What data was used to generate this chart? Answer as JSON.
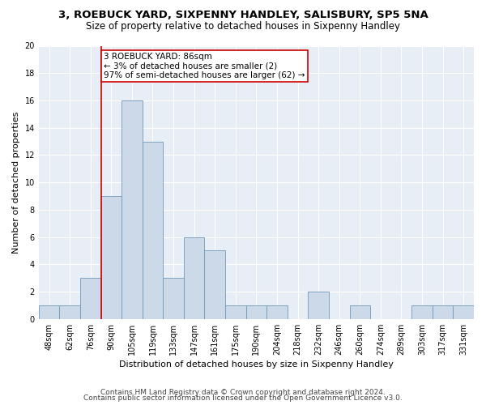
{
  "title1": "3, ROEBUCK YARD, SIXPENNY HANDLEY, SALISBURY, SP5 5NA",
  "title2": "Size of property relative to detached houses in Sixpenny Handley",
  "xlabel": "Distribution of detached houses by size in Sixpenny Handley",
  "ylabel": "Number of detached properties",
  "bin_labels": [
    "48sqm",
    "62sqm",
    "76sqm",
    "90sqm",
    "105sqm",
    "119sqm",
    "133sqm",
    "147sqm",
    "161sqm",
    "175sqm",
    "190sqm",
    "204sqm",
    "218sqm",
    "232sqm",
    "246sqm",
    "260sqm",
    "274sqm",
    "289sqm",
    "303sqm",
    "317sqm",
    "331sqm"
  ],
  "bin_values": [
    1,
    1,
    3,
    9,
    16,
    13,
    3,
    6,
    5,
    1,
    1,
    1,
    0,
    2,
    0,
    1,
    0,
    0,
    1,
    1,
    1
  ],
  "bar_color": "#ccd9e8",
  "bar_edge_color": "#7098b8",
  "vline_color": "#cc0000",
  "vline_x_idx": 3,
  "annotation_text": "3 ROEBUCK YARD: 86sqm\n← 3% of detached houses are smaller (2)\n97% of semi-detached houses are larger (62) →",
  "annotation_box_color": "#ffffff",
  "annotation_box_edge": "#cc0000",
  "ylim": [
    0,
    20
  ],
  "yticks": [
    0,
    2,
    4,
    6,
    8,
    10,
    12,
    14,
    16,
    18,
    20
  ],
  "background_color": "#e8eef5",
  "footer1": "Contains HM Land Registry data © Crown copyright and database right 2024.",
  "footer2": "Contains public sector information licensed under the Open Government Licence v3.0.",
  "title_fontsize": 9.5,
  "subtitle_fontsize": 8.5,
  "axis_label_fontsize": 8,
  "tick_fontsize": 7,
  "footer_fontsize": 6.5,
  "annotation_fontsize": 7.5
}
